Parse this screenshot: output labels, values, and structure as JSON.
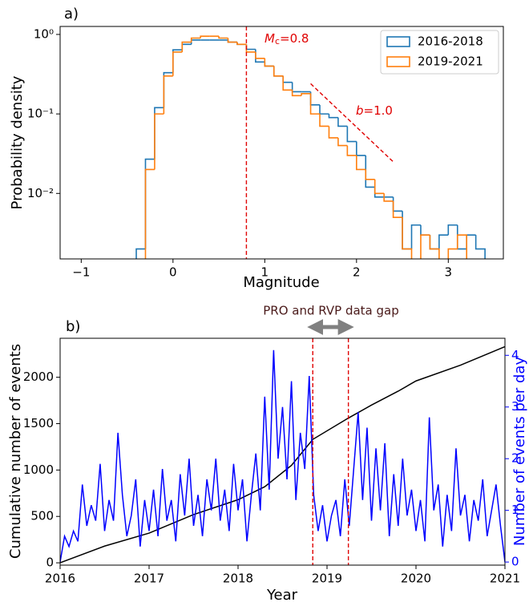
{
  "chart_data": [
    {
      "type": "histogram",
      "panel_label": "a)",
      "xlabel": "Magnitude",
      "ylabel": "Probability density",
      "yscale": "log",
      "legend": "upper right",
      "xlim": [
        -1.23,
        3.6
      ],
      "ylim": [
        0.0015,
        1.26
      ],
      "xticks": [
        {
          "value": -1,
          "label": "−1"
        },
        0,
        1,
        2,
        3
      ],
      "yticks": [
        {
          "value": 1,
          "label": "10⁰"
        },
        {
          "value": 0.1,
          "label": "10⁻¹"
        },
        {
          "value": 0.01,
          "label": "10⁻²"
        }
      ],
      "bins": [
        -0.4,
        -0.3,
        -0.2,
        -0.1,
        0,
        0.1,
        0.2,
        0.3,
        0.4,
        0.5,
        0.6,
        0.7,
        0.8,
        0.9,
        1,
        1.1,
        1.2,
        1.3,
        1.4,
        1.5,
        1.6,
        1.7,
        1.8,
        1.9,
        2,
        2.1,
        2.2,
        2.3,
        2.4,
        2.5,
        2.6,
        2.7,
        2.8,
        2.9,
        3,
        3.1,
        3.2,
        3.3,
        3.4
      ],
      "series": [
        {
          "name": "2016-2018",
          "color": "#1f77b4",
          "values": [
            0.002,
            0.027,
            0.12,
            0.33,
            0.64,
            0.75,
            0.85,
            0.85,
            0.85,
            0.85,
            0.8,
            0.75,
            0.65,
            0.45,
            0.4,
            0.3,
            0.25,
            0.19,
            0.19,
            0.13,
            0.1,
            0.09,
            0.07,
            0.045,
            0.03,
            0.012,
            0.009,
            0.009,
            0.006,
            0.002,
            0.004,
            0.003,
            0.002,
            0.003,
            0.004,
            0.002,
            0.003,
            0.002
          ]
        },
        {
          "name": "2019-2021",
          "color": "#ff7f0e",
          "values": [
            null,
            0.02,
            0.1,
            0.3,
            0.6,
            0.8,
            0.9,
            0.95,
            0.95,
            0.9,
            0.8,
            0.75,
            0.6,
            0.5,
            0.4,
            0.3,
            0.2,
            0.17,
            0.18,
            0.1,
            0.07,
            0.05,
            0.04,
            0.03,
            0.02,
            0.015,
            0.01,
            0.008,
            0.005,
            0.002,
            null,
            0.003,
            0.002,
            null,
            0.002,
            0.003,
            null,
            null
          ]
        }
      ],
      "mc_line": 0.8,
      "mc_symbol": "M",
      "mc_subscript": "c",
      "mc_text": "=0.8",
      "b_line": {
        "x": [
          1.5,
          2.4
        ],
        "y": [
          0.24,
          0.025
        ]
      },
      "b_symbol": "b",
      "b_text": "=1.0"
    },
    {
      "type": "line",
      "panel_label": "b)",
      "xlabel": "Year",
      "ylabel": "Cumulative number of events",
      "y2label": "Number of events per day",
      "xlim": [
        2016,
        2021
      ],
      "ylim": [
        -25,
        2420
      ],
      "y2lim": [
        -0.06,
        4.33
      ],
      "xticks": [
        2016,
        2017,
        2018,
        2019,
        2020,
        2021
      ],
      "yticks": [
        0,
        500,
        1000,
        1500,
        2000
      ],
      "y2ticks": [
        0,
        1,
        2,
        3,
        4
      ],
      "vlines": [
        2018.84,
        2019.24
      ],
      "gap_label": "PRO and RVP data gap",
      "series": [
        {
          "name": "Cumulative number of events",
          "color": "#000000",
          "x": [
            2016,
            2016.5,
            2017,
            2017.5,
            2018,
            2018.3,
            2018.6,
            2018.84,
            2019.24,
            2019.5,
            2019.8,
            2020,
            2020.5,
            2021
          ],
          "values": [
            0,
            180,
            320,
            520,
            680,
            820,
            1050,
            1330,
            1560,
            1700,
            1850,
            1960,
            2130,
            2330
          ]
        },
        {
          "name": "Number of events per day",
          "color": "#0000ff",
          "axis": "y2",
          "x": [
            2016,
            2016.05,
            2016.1,
            2016.15,
            2016.2,
            2016.25,
            2016.3,
            2016.35,
            2016.4,
            2016.45,
            2016.5,
            2016.55,
            2016.6,
            2016.65,
            2016.7,
            2016.75,
            2016.8,
            2016.85,
            2016.9,
            2016.95,
            2017,
            2017.05,
            2017.1,
            2017.15,
            2017.2,
            2017.25,
            2017.3,
            2017.35,
            2017.4,
            2017.45,
            2017.5,
            2017.55,
            2017.6,
            2017.65,
            2017.7,
            2017.75,
            2017.8,
            2017.85,
            2017.9,
            2017.95,
            2018,
            2018.05,
            2018.1,
            2018.15,
            2018.2,
            2018.25,
            2018.3,
            2018.35,
            2018.4,
            2018.45,
            2018.5,
            2018.55,
            2018.6,
            2018.65,
            2018.7,
            2018.75,
            2018.8,
            2018.85,
            2018.9,
            2018.95,
            2019,
            2019.05,
            2019.1,
            2019.15,
            2019.2,
            2019.25,
            2019.3,
            2019.35,
            2019.4,
            2019.45,
            2019.5,
            2019.55,
            2019.6,
            2019.65,
            2019.7,
            2019.75,
            2019.8,
            2019.85,
            2019.9,
            2019.95,
            2020,
            2020.05,
            2020.1,
            2020.15,
            2020.2,
            2020.25,
            2020.3,
            2020.35,
            2020.4,
            2020.45,
            2020.5,
            2020.55,
            2020.6,
            2020.65,
            2020.7,
            2020.75,
            2020.8,
            2020.85,
            2020.9,
            2020.95,
            2021
          ],
          "values": [
            0,
            0.5,
            0.3,
            0.6,
            0.4,
            1.5,
            0.7,
            1.1,
            0.8,
            1.9,
            0.6,
            1.2,
            0.8,
            2.5,
            1.3,
            0.5,
            0.9,
            1.6,
            0.3,
            1.2,
            0.6,
            1.4,
            0.5,
            1.8,
            0.8,
            1.2,
            0.4,
            1.7,
            0.9,
            2,
            0.7,
            1.3,
            0.5,
            1.6,
            1,
            2,
            0.8,
            1.4,
            0.6,
            1.9,
            1,
            1.6,
            0.4,
            1.3,
            2.1,
            1,
            3.2,
            1.4,
            4.1,
            2,
            3,
            1.6,
            3.5,
            1.2,
            2.5,
            1.8,
            3.6,
            1.3,
            0.6,
            1.1,
            0.4,
            0.9,
            1.2,
            0.5,
            1.6,
            0.7,
            1.8,
            2.9,
            1.2,
            2.6,
            0.8,
            2.2,
            1,
            2.3,
            0.5,
            1.7,
            0.7,
            2,
            0.9,
            1.4,
            0.6,
            1.2,
            0.4,
            2.8,
            1,
            1.5,
            0.3,
            1.3,
            0.6,
            2.2,
            0.9,
            1.3,
            0.4,
            1.2,
            0.8,
            1.6,
            0.5,
            1,
            1.5,
            0.7,
            0
          ]
        }
      ]
    }
  ]
}
